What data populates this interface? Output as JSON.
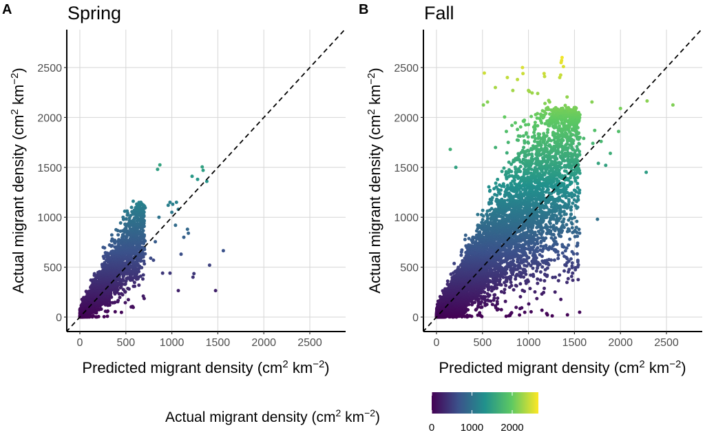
{
  "figure": {
    "legend": {
      "title": "Actual migrant density",
      "unit_open": "(cm",
      "unit_sup1": "2",
      "unit_mid": " km",
      "unit_sup2": "−2",
      "unit_close": ")",
      "ticks": [
        "0",
        "1000",
        "2000"
      ],
      "tick_values": [
        0,
        1000,
        2000
      ],
      "range": [
        0,
        2650
      ],
      "colormap": "viridis",
      "colors": [
        "#440154",
        "#3b528b",
        "#21918c",
        "#5ec962",
        "#fde725"
      ]
    }
  },
  "chart_data": [
    {
      "type": "scatter",
      "panel_letter": "A",
      "title": "Spring",
      "xlabel": "Predicted migrant density",
      "ylabel": "Actual migrant density",
      "unit_open": "(cm",
      "unit_sup1": "2",
      "unit_mid": " km",
      "unit_sup2": "−2",
      "unit_close": ")",
      "xlim": [
        -150,
        2880
      ],
      "ylim": [
        -150,
        2880
      ],
      "xticks": [
        0,
        500,
        1000,
        1500,
        2000,
        2500
      ],
      "yticks": [
        0,
        500,
        1000,
        1500,
        2000,
        2500
      ],
      "xtick_labels": [
        "0",
        "500",
        "1000",
        "1500",
        "2000",
        "2500"
      ],
      "ytick_labels": [
        "0",
        "500",
        "1000",
        "1500",
        "2000",
        "2500"
      ],
      "reference_line": "y = x (dashed)",
      "color_by": "actual density (viridis)",
      "bulk": {
        "n": 2600,
        "x_max": 700,
        "slope": 1.25,
        "spread": 0.28,
        "y_cap": 1150
      },
      "points": [
        [
          870,
          1525
        ],
        [
          845,
          1480
        ],
        [
          1330,
          1505
        ],
        [
          1380,
          1360
        ],
        [
          1220,
          1410
        ],
        [
          1280,
          1380
        ],
        [
          1340,
          1470
        ],
        [
          1050,
          1150
        ],
        [
          980,
          1150
        ],
        [
          1010,
          1130
        ],
        [
          960,
          1120
        ],
        [
          1070,
          1080
        ],
        [
          580,
          1160
        ],
        [
          700,
          1090
        ],
        [
          860,
          1000
        ],
        [
          1410,
          520
        ],
        [
          1560,
          665
        ],
        [
          1475,
          265
        ],
        [
          1070,
          265
        ],
        [
          1230,
          400
        ],
        [
          1240,
          435
        ],
        [
          980,
          440
        ],
        [
          900,
          440
        ],
        [
          1100,
          630
        ],
        [
          800,
          570
        ],
        [
          1000,
          1050
        ],
        [
          1170,
          880
        ],
        [
          1180,
          840
        ],
        [
          820,
          755
        ],
        [
          770,
          590
        ],
        [
          1130,
          800
        ],
        [
          1040,
          920
        ]
      ]
    },
    {
      "type": "scatter",
      "panel_letter": "B",
      "title": "Fall",
      "xlabel": "Predicted migrant density",
      "ylabel": "Actual migrant density",
      "unit_open": "(cm",
      "unit_sup1": "2",
      "unit_mid": " km",
      "unit_sup2": "−2",
      "unit_close": ")",
      "xlim": [
        -150,
        2880
      ],
      "ylim": [
        -150,
        2880
      ],
      "xticks": [
        0,
        500,
        1000,
        1500,
        2000,
        2500
      ],
      "yticks": [
        0,
        500,
        1000,
        1500,
        2000,
        2500
      ],
      "xtick_labels": [
        "0",
        "500",
        "1000",
        "1500",
        "2000",
        "2500"
      ],
      "ytick_labels": [
        "0",
        "500",
        "1000",
        "1500",
        "2000",
        "2500"
      ],
      "reference_line": "y = x (dashed)",
      "color_by": "actual density (viridis)",
      "bulk": {
        "n": 6500,
        "x_max": 1550,
        "slope": 1.12,
        "spread": 0.33,
        "y_cap": 2100
      },
      "points": [
        [
          520,
          2445
        ],
        [
          935,
          2500
        ],
        [
          940,
          2440
        ],
        [
          1170,
          2440
        ],
        [
          1175,
          2410
        ],
        [
          770,
          2400
        ],
        [
          880,
          2380
        ],
        [
          1340,
          2400
        ],
        [
          1350,
          2425
        ],
        [
          1360,
          2570
        ],
        [
          1365,
          2600
        ],
        [
          1355,
          2550
        ],
        [
          1380,
          2510
        ],
        [
          640,
          2300
        ],
        [
          1000,
          2270
        ],
        [
          1010,
          2260
        ],
        [
          1040,
          2245
        ],
        [
          830,
          2270
        ],
        [
          1100,
          2240
        ],
        [
          1420,
          2205
        ],
        [
          1690,
          2155
        ],
        [
          2570,
          2125
        ],
        [
          2290,
          2165
        ],
        [
          2000,
          2090
        ],
        [
          1980,
          1860
        ],
        [
          2280,
          1450
        ],
        [
          1750,
          980
        ],
        [
          1480,
          440
        ],
        [
          1300,
          1640
        ],
        [
          510,
          2125
        ],
        [
          555,
          2155
        ],
        [
          740,
          2005
        ],
        [
          1220,
          2170
        ],
        [
          1230,
          2155
        ],
        [
          1400,
          2120
        ],
        [
          1395,
          2060
        ],
        [
          1350,
          2010
        ],
        [
          1390,
          2050
        ],
        [
          1030,
          2010
        ],
        [
          1200,
          2080
        ],
        [
          210,
          1500
        ],
        [
          150,
          1680
        ],
        [
          1600,
          1790
        ],
        [
          1700,
          1740
        ],
        [
          1790,
          1760
        ],
        [
          1760,
          1540
        ],
        [
          1890,
          1640
        ],
        [
          1840,
          1520
        ],
        [
          1720,
          1870
        ],
        [
          1560,
          1800
        ],
        [
          1180,
          2140
        ],
        [
          1250,
          2000
        ],
        [
          1210,
          1930
        ],
        [
          1120,
          1990
        ],
        [
          1060,
          1850
        ],
        [
          950,
          1960
        ],
        [
          880,
          1880
        ],
        [
          820,
          1920
        ],
        [
          780,
          1750
        ],
        [
          760,
          1860
        ]
      ]
    }
  ]
}
